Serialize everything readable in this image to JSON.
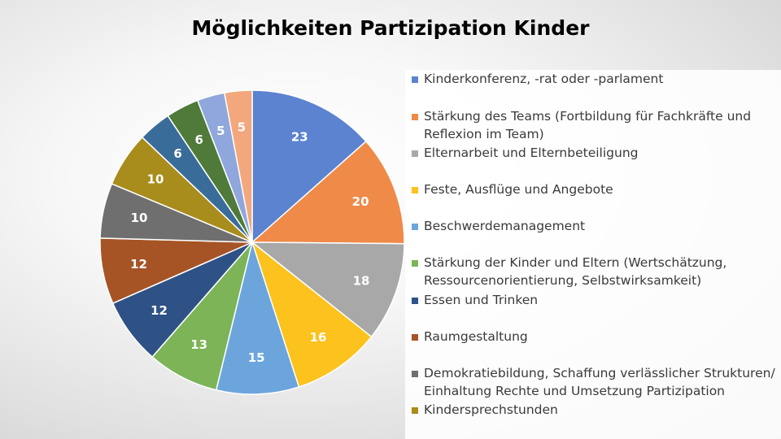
{
  "chart_data": {
    "type": "pie",
    "title": "Möglichkeiten Partizipation Kinder",
    "legend_position": "right",
    "start_angle_deg": 0,
    "direction": "clockwise",
    "slices": [
      {
        "label": "Kinderkonferenz, -rat oder -parlament",
        "value": 23,
        "color": "#5b83cf"
      },
      {
        "label": "Stärkung des Teams (Fortbildung für Fachkräfte und Reflexion im Team)",
        "label_lines": [
          "Stärkung des Teams (Fortbildung für Fachkräfte und",
          "Reflexion im Team)"
        ],
        "value": 20,
        "color": "#ef8a49"
      },
      {
        "label": "Elternarbeit und Elternbeteiligung",
        "value": 18,
        "color": "#a8a8a8"
      },
      {
        "label": "Feste, Ausflüge und Angebote",
        "value": 16,
        "color": "#fcc21d"
      },
      {
        "label": "Beschwerdemanagement",
        "value": 15,
        "color": "#6ca5dc"
      },
      {
        "label": "Stärkung der Kinder und Eltern (Wertschätzung, Ressourcenorientierung, Selbstwirksamkeit)",
        "label_lines": [
          "Stärkung der Kinder und Eltern (Wertschätzung,",
          "Ressourcenorientierung, Selbstwirksamkeit)"
        ],
        "value": 13,
        "color": "#7cb457"
      },
      {
        "label": "Essen und Trinken",
        "value": 12,
        "color": "#2f5286"
      },
      {
        "label": "Raumgestaltung",
        "value": 12,
        "color": "#a65426"
      },
      {
        "label": "Demokratiebildung, Schaffung verlässlicher Strukturen/ Einhaltung Rechte und Umsetzung Partizipation",
        "label_lines": [
          "Demokratiebildung, Schaffung verlässlicher Strukturen/",
          "Einhaltung Rechte und Umsetzung Partizipation"
        ],
        "value": 10,
        "color": "#6f6f6f"
      },
      {
        "label": "Kindersprechstunden",
        "value": 10,
        "color": "#a88c1c"
      },
      {
        "label": "",
        "value": 6,
        "color": "#3a6c99"
      },
      {
        "label": "",
        "value": 6,
        "color": "#4f7a39"
      },
      {
        "label": "",
        "value": 5,
        "color": "#8fa7dc"
      },
      {
        "label": "",
        "value": 5,
        "color": "#f3a77c"
      }
    ]
  }
}
